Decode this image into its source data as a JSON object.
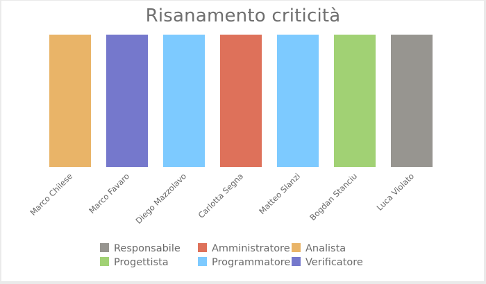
{
  "chart_data": {
    "type": "bar",
    "title": "Risanamento criticità",
    "categories": [
      "Marco Chilese",
      "Marco Favaro",
      "Diego Mazzolavo",
      "Carlotta Segna",
      "Matteo Slanzi",
      "Bogdan Stanciu",
      "Luca Violato"
    ],
    "values": [
      1,
      1,
      1,
      1,
      1,
      1,
      1
    ],
    "roles": [
      "Analista",
      "Verificatore",
      "Programmatore",
      "Amministratore",
      "Programmatore",
      "Progettista",
      "Responsabile"
    ],
    "colors": [
      "#e9b468",
      "#7578cc",
      "#7dcaff",
      "#de715a",
      "#7dcaff",
      "#a1d174",
      "#979590"
    ],
    "grid": false,
    "legend_position": "bottom",
    "legend": [
      {
        "label": "Responsabile",
        "color": "#979590"
      },
      {
        "label": "Amministratore",
        "color": "#de715a"
      },
      {
        "label": "Analista",
        "color": "#e9b468"
      },
      {
        "label": "Progettista",
        "color": "#a1d174"
      },
      {
        "label": "Programmatore",
        "color": "#7dcaff"
      },
      {
        "label": "Verificatore",
        "color": "#7578cc"
      }
    ]
  }
}
